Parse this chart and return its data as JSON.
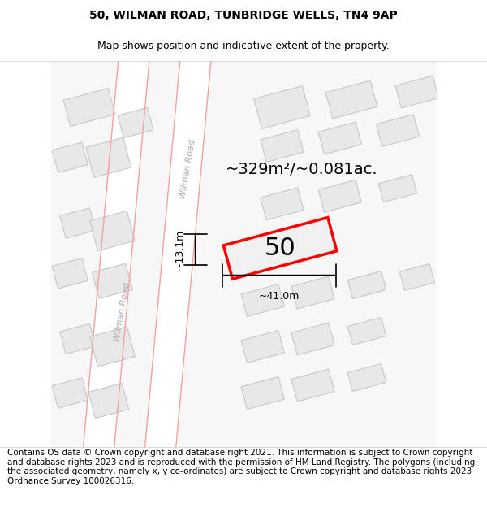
{
  "title_line1": "50, WILMAN ROAD, TUNBRIDGE WELLS, TN4 9AP",
  "title_line2": "Map shows position and indicative extent of the property.",
  "area_label": "~329m²/~0.081ac.",
  "plot_number": "50",
  "width_label": "~41.0m",
  "height_label": "~13.1m",
  "road_label": "Wilman Road",
  "footer_text": "Contains OS data © Crown copyright and database right 2021. This information is subject to Crown copyright and database rights 2023 and is reproduced with the permission of HM Land Registry. The polygons (including the associated geometry, namely x, y co-ordinates) are subject to Crown copyright and database rights 2023 Ordnance Survey 100026316.",
  "bg_color": "#f5f5f5",
  "map_bg": "#f0f0f0",
  "plot_fill": "#f0f0f0",
  "plot_edge": "#ff0000",
  "building_fill": "#e0e0e0",
  "building_edge": "#cccccc",
  "road_line_color": "#f5a0a0",
  "road_bg_color": "#ffffff",
  "title_fontsize": 10,
  "subtitle_fontsize": 9,
  "area_fontsize": 14,
  "plot_num_fontsize": 22,
  "footer_fontsize": 7.5
}
